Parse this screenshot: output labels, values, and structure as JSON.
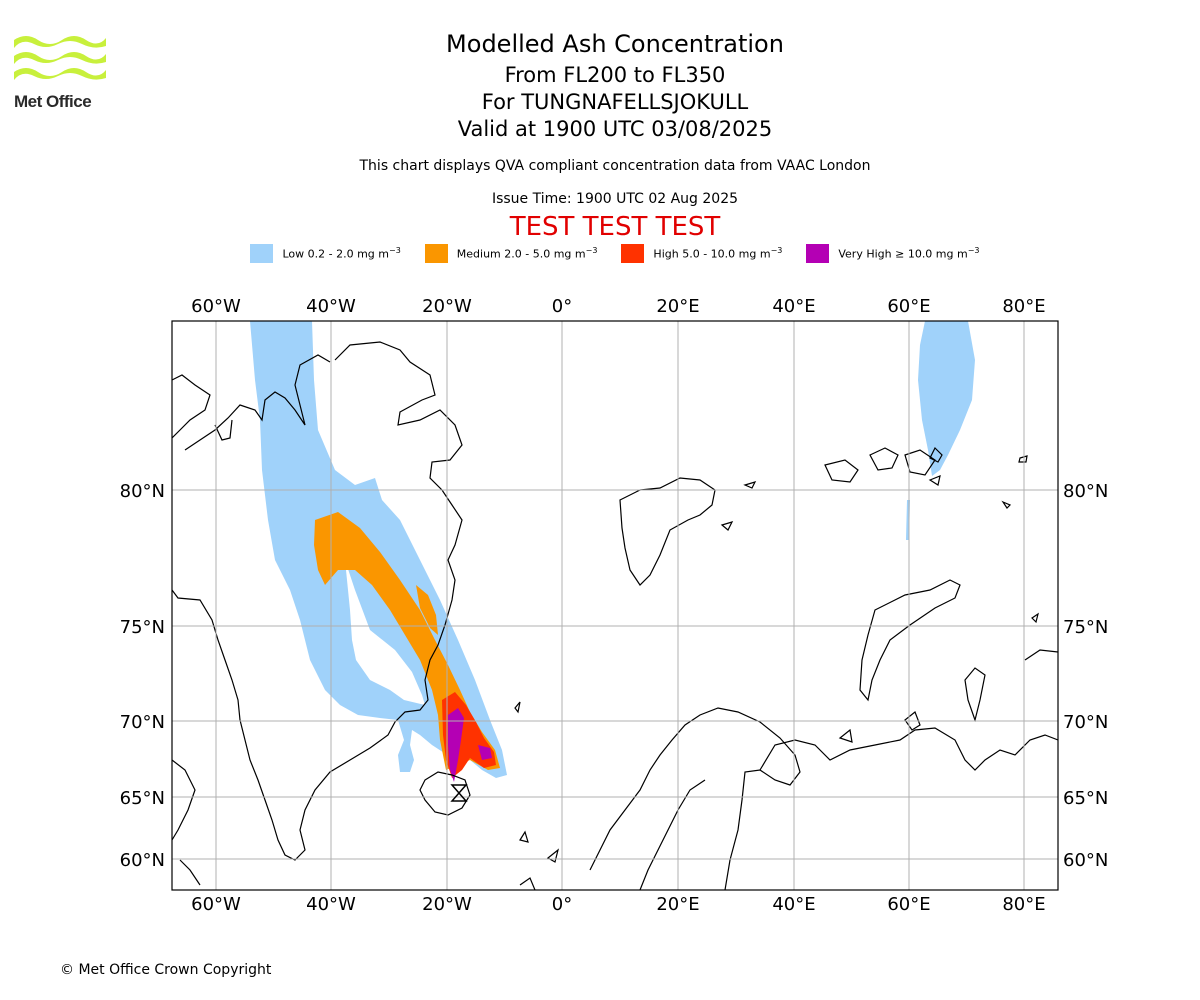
{
  "header": {
    "title": "Modelled Ash Concentration",
    "levels": "From FL200 to FL350",
    "volcano": "For TUNGNAFELLSJOKULL",
    "valid": "Valid at 1900 UTC 03/08/2025",
    "subtitle": "This chart displays QVA compliant concentration data from VAAC London",
    "issue": "Issue Time: 1900 UTC 02 Aug 2025",
    "test_banner": "TEST TEST TEST"
  },
  "logo": {
    "text": "Met Office",
    "color": "#c8f03c"
  },
  "legend": [
    {
      "label": "Low 0.2 - 2.0 mg m",
      "unit_exp": "−3",
      "color": "#a0d2fa"
    },
    {
      "label": "Medium 2.0 - 5.0 mg m",
      "unit_exp": "−3",
      "color": "#fa9600"
    },
    {
      "label": "High 5.0 - 10.0 mg m",
      "unit_exp": "−3",
      "color": "#ff3200"
    },
    {
      "label": "Very High ≥ 10.0 mg m",
      "unit_exp": "−3",
      "color": "#b400b4"
    }
  ],
  "map": {
    "longitude_ticks": [
      "60°W",
      "40°W",
      "20°W",
      "0°",
      "20°E",
      "40°E",
      "60°E",
      "80°E"
    ],
    "latitude_ticks": [
      "60°N",
      "65°N",
      "70°N",
      "75°N",
      "80°N"
    ],
    "source_marker": "volcano-hourglass"
  },
  "footer": {
    "copyright": "© Met Office Crown Copyright"
  }
}
